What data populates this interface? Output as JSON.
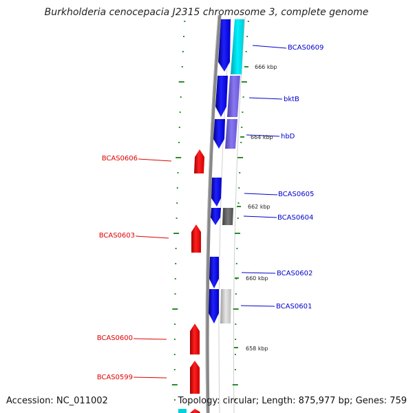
{
  "title": "Burkholderia cenocepacia J2315 chromosome 3, complete genome",
  "footer": {
    "accession_label": "Accession:",
    "accession": "NC_011002",
    "topology_label": "Topology:",
    "topology": "circular",
    "length_label": "Length:",
    "length": "875,977 bp",
    "genes_label": "Genes:",
    "genes": "759"
  },
  "colors": {
    "forward_cds": "#0000ff",
    "reverse_cds": "#ff0000",
    "forward_label": "#0000cc",
    "reverse_label": "#dd0000",
    "tick": "#2a8a2a",
    "backbone": "#888888",
    "cog_cyan": "#00e5ee",
    "cog_purple": "#7b68ee",
    "cog_darkgray": "#666666",
    "cog_lightgray": "#c8c8c8"
  },
  "ruler": [
    {
      "label": "666 kbp"
    },
    {
      "label": "664 kbp"
    },
    {
      "label": "662 kbp"
    },
    {
      "label": "660 kbp"
    },
    {
      "label": "658 kbp"
    }
  ],
  "forward_genes": [
    {
      "label": "BCAS0609",
      "cog": "cyan"
    },
    {
      "label": "bktB",
      "cog": "purple"
    },
    {
      "label": "hbD",
      "cog": "purple"
    },
    {
      "label": "BCAS0605",
      "cog": "none"
    },
    {
      "label": "BCAS0604",
      "cog": "darkgray"
    },
    {
      "label": "BCAS0602",
      "cog": "none"
    },
    {
      "label": "BCAS0601",
      "cog": "lightgray"
    }
  ],
  "reverse_genes": [
    {
      "label": "BCAS0606"
    },
    {
      "label": "BCAS0603"
    },
    {
      "label": "BCAS0600"
    },
    {
      "label": "BCAS0599"
    }
  ]
}
